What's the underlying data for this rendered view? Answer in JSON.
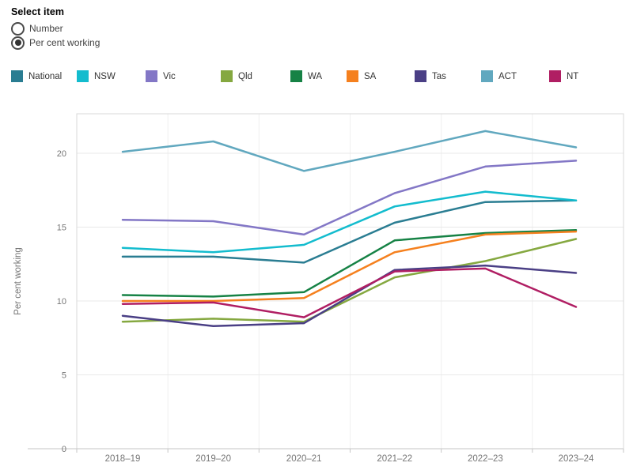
{
  "controls": {
    "title": "Select item",
    "options": [
      {
        "label": "Number",
        "selected": false
      },
      {
        "label": "Per cent working",
        "selected": true
      }
    ]
  },
  "chart_data": {
    "type": "line",
    "title": "",
    "x_categories": [
      "2018–19",
      "2019–20",
      "2020–21",
      "2021–22",
      "2022–23",
      "2023–24"
    ],
    "series": [
      {
        "name": "National",
        "color": "#2a7d92",
        "values": [
          13.0,
          13.0,
          12.6,
          15.3,
          16.7,
          16.8
        ]
      },
      {
        "name": "NSW",
        "color": "#13bcce",
        "values": [
          13.6,
          13.3,
          13.8,
          16.4,
          17.4,
          16.8
        ]
      },
      {
        "name": "Vic",
        "color": "#8377c6",
        "values": [
          15.5,
          15.4,
          14.5,
          17.3,
          19.1,
          19.5
        ]
      },
      {
        "name": "Qld",
        "color": "#85a840",
        "values": [
          8.6,
          8.8,
          8.6,
          11.6,
          12.7,
          14.2
        ]
      },
      {
        "name": "WA",
        "color": "#168245",
        "values": [
          10.4,
          10.3,
          10.6,
          14.1,
          14.6,
          14.8
        ]
      },
      {
        "name": "SA",
        "color": "#f5801e",
        "values": [
          10.0,
          10.0,
          10.2,
          13.3,
          14.5,
          14.7
        ]
      },
      {
        "name": "Tas",
        "color": "#4a3f85",
        "values": [
          9.0,
          8.3,
          8.5,
          12.1,
          12.4,
          11.9
        ]
      },
      {
        "name": "ACT",
        "color": "#61a8bf",
        "values": [
          20.1,
          20.8,
          18.8,
          20.1,
          21.5,
          20.4
        ]
      },
      {
        "name": "NT",
        "color": "#b01e63",
        "values": [
          9.8,
          9.9,
          8.9,
          12.0,
          12.2,
          9.6
        ]
      }
    ],
    "xlabel": "",
    "ylabel": "Per cent working",
    "yticks": [
      0,
      5,
      10,
      15,
      20
    ],
    "ylim": [
      0,
      22.6
    ],
    "grid": true,
    "legend_position": "top"
  },
  "style": {
    "plot_border_color": "#d9d9d9",
    "gridline_color": "#e9e9e9",
    "column_divider_color": "#efefef",
    "axis_rule_color": "#c6c6c6",
    "tick_label_color": "#767676"
  }
}
